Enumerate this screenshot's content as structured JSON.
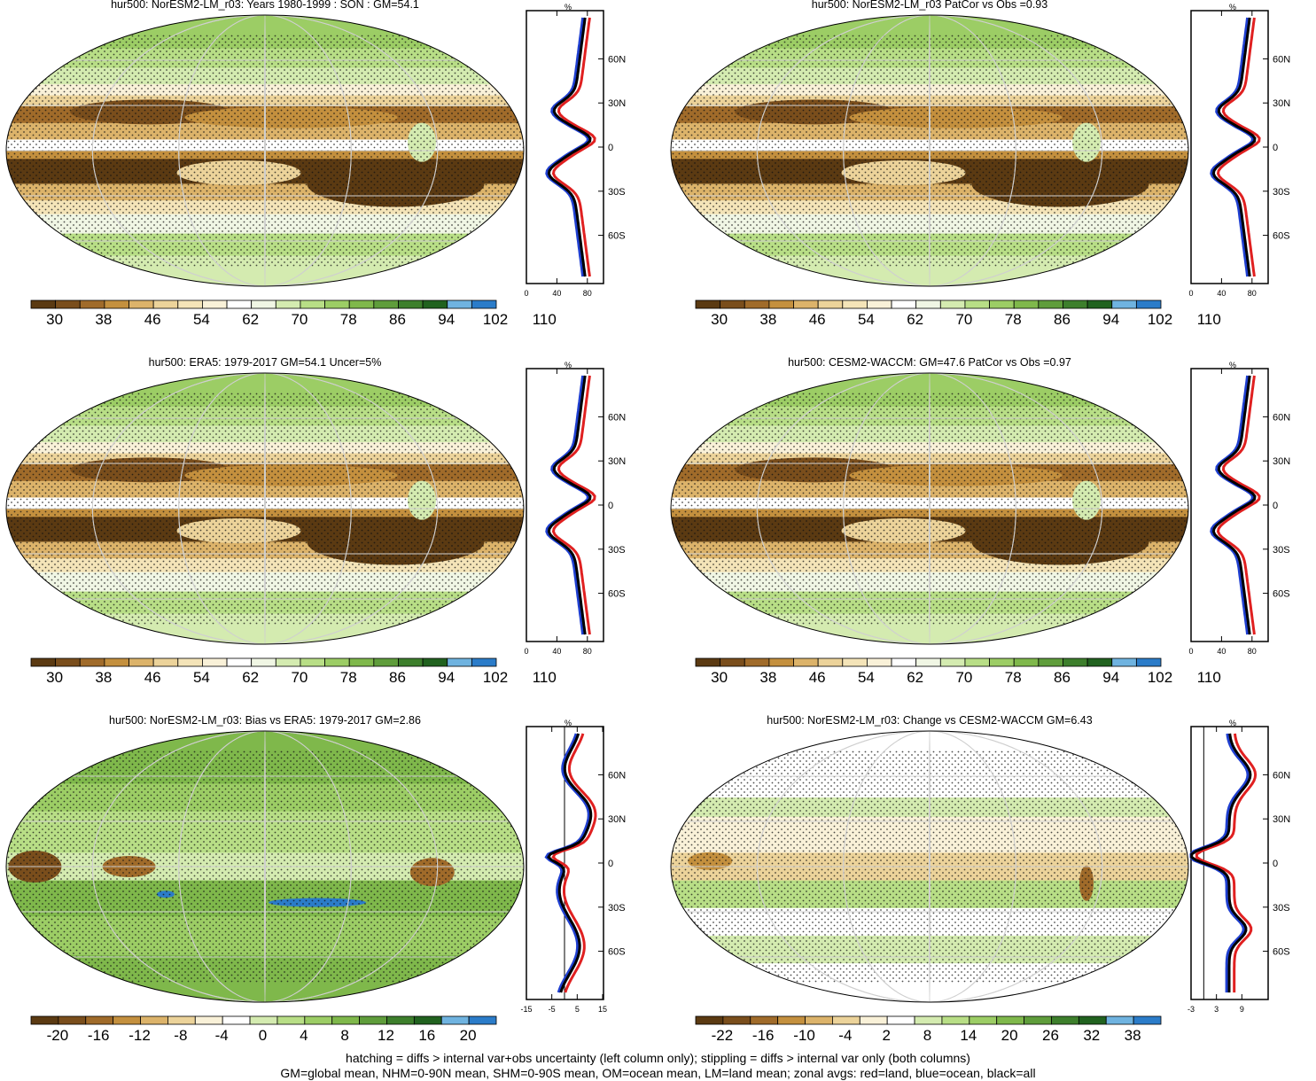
{
  "palettes": {
    "abs": [
      "#5b3a12",
      "#7a4e1c",
      "#a06b2a",
      "#c4903e",
      "#dcb36a",
      "#ecd39a",
      "#f4e4b8",
      "#f9f1d8",
      "#ffffff",
      "#f0f6e4",
      "#d4ebb0",
      "#b8de86",
      "#9ccd65",
      "#7fb84b",
      "#5f9d3b",
      "#3d7f2c",
      "#21621f",
      "#6fb3e0",
      "#2b7cc9"
    ],
    "div": [
      "#5b3a12",
      "#7a4e1c",
      "#a06b2a",
      "#c4903e",
      "#dcb36a",
      "#ecd39a",
      "#f9f1d8",
      "#ffffff",
      "#d4ebb0",
      "#b8de86",
      "#9ccd65",
      "#7fb84b",
      "#5f9d3b",
      "#3d7f2c",
      "#21621f",
      "#6fb3e0",
      "#2b7cc9"
    ]
  },
  "panels": [
    {
      "id": "model-son",
      "title": "hur500: NorESM2-LM_r03: Years 1980-1999 : SON : GM=54.1",
      "palette": "abs",
      "cb_labels": [
        "30",
        "38",
        "46",
        "54",
        "62",
        "70",
        "78",
        "86",
        "94",
        "102",
        "110"
      ],
      "zonal_ticks": [
        "0",
        "40",
        "80"
      ],
      "zonal_xlim": [
        0,
        100
      ],
      "lat_labels": [
        "60N",
        "30N",
        "0",
        "30S",
        "60S"
      ]
    },
    {
      "id": "patcor",
      "title": "hur500: NorESM2-LM_r03 PatCor vs Obs =0.93",
      "palette": "abs",
      "cb_labels": [
        "30",
        "38",
        "46",
        "54",
        "62",
        "70",
        "78",
        "86",
        "94",
        "102",
        "110"
      ],
      "zonal_ticks": [
        "0",
        "40",
        "80"
      ],
      "zonal_xlim": [
        0,
        100
      ],
      "lat_labels": [
        "60N",
        "30N",
        "0",
        "30S",
        "60S"
      ]
    },
    {
      "id": "era5",
      "title": "hur500: ERA5: 1979-2017 GM=54.1 Uncer=5%",
      "palette": "abs",
      "cb_labels": [
        "30",
        "38",
        "46",
        "54",
        "62",
        "70",
        "78",
        "86",
        "94",
        "102",
        "110"
      ],
      "zonal_ticks": [
        "0",
        "40",
        "80"
      ],
      "zonal_xlim": [
        0,
        100
      ],
      "lat_labels": [
        "60N",
        "30N",
        "0",
        "30S",
        "60S"
      ]
    },
    {
      "id": "cesm2",
      "title": "hur500: CESM2-WACCM: GM=47.6 PatCor vs Obs =0.97",
      "palette": "abs",
      "cb_labels": [
        "30",
        "38",
        "46",
        "54",
        "62",
        "70",
        "78",
        "86",
        "94",
        "102",
        "110"
      ],
      "zonal_ticks": [
        "0",
        "40",
        "80"
      ],
      "zonal_xlim": [
        0,
        100
      ],
      "lat_labels": [
        "60N",
        "30N",
        "0",
        "30S",
        "60S"
      ]
    },
    {
      "id": "bias",
      "title": "hur500: NorESM2-LM_r03: Bias vs ERA5: 1979-2017  GM=2.86",
      "palette": "div",
      "cb_labels": [
        "-20",
        "-16",
        "-12",
        "-8",
        "-4",
        "0",
        "4",
        "8",
        "12",
        "16",
        "20"
      ],
      "zonal_ticks": [
        "-15",
        "-5",
        "5",
        "15"
      ],
      "zonal_xlim": [
        -15,
        15
      ],
      "lat_labels": [
        "60N",
        "30N",
        "0",
        "30S",
        "60S"
      ]
    },
    {
      "id": "change",
      "title": "hur500: NorESM2-LM_r03: Change vs CESM2-WACCM GM=6.43",
      "palette": "div",
      "cb_labels": [
        "-22",
        "-16",
        "-10",
        "-4",
        "2",
        "8",
        "14",
        "20",
        "26",
        "32",
        "38"
      ],
      "zonal_ticks": [
        "-3",
        "3",
        "9"
      ],
      "zonal_xlim": [
        -3,
        15
      ],
      "lat_labels": [
        "60N",
        "30N",
        "0",
        "30S",
        "60S"
      ]
    }
  ],
  "zonal_unit": "%",
  "legend_colors": {
    "land": "#e02020",
    "ocean": "#1f3fd0",
    "all": "#000000"
  },
  "footer": {
    "line1": "hatching = diffs > internal var+obs uncertainty (left column only); stippling = diffs > internal var only (both columns)",
    "line2": "GM=global mean, NHM=0-90N mean, SHM=0-90S mean, OM=ocean mean, LM=land mean; zonal avgs: red=land, blue=ocean, black=all"
  }
}
